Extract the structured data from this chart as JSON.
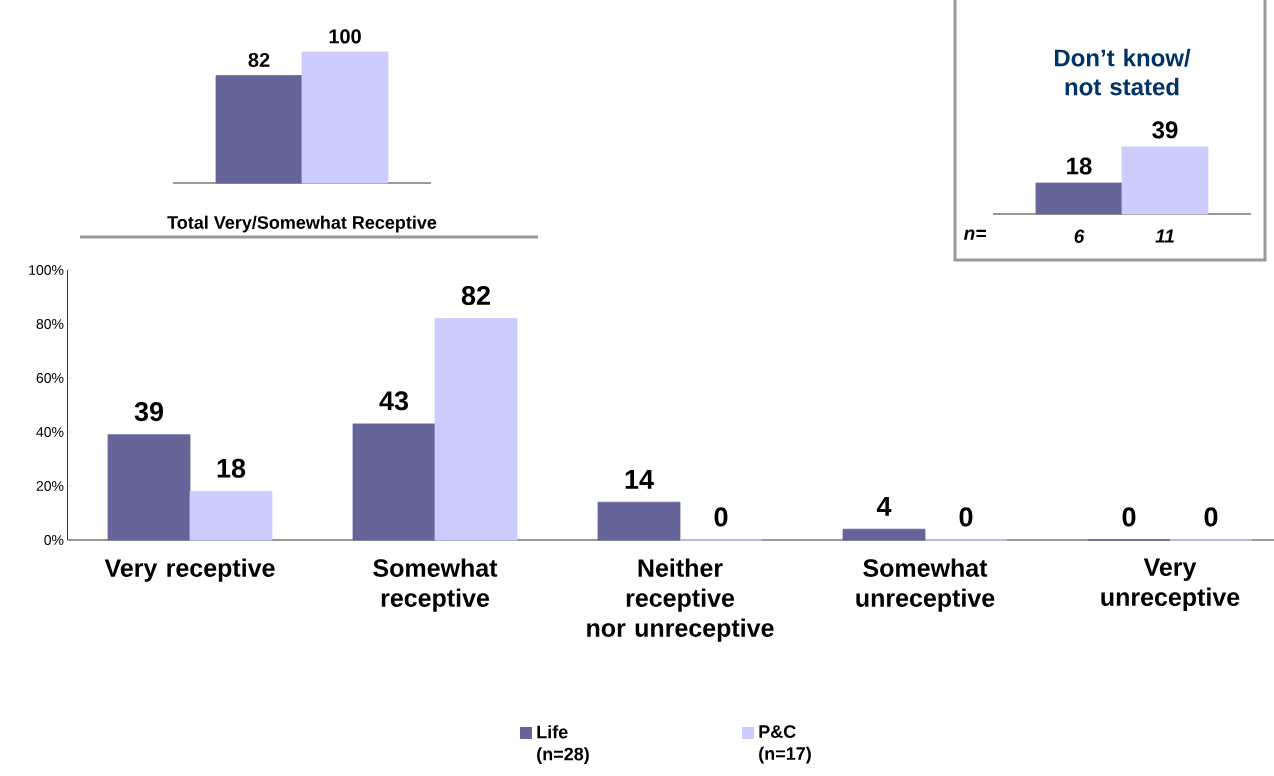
{
  "chart_data": [
    {
      "type": "bar",
      "xlabel": "Total Very/Somewhat Receptive",
      "categories": [
        null
      ],
      "series": [
        {
          "color": "#65659a",
          "values": [
            82
          ]
        },
        {
          "color": "#ccccff",
          "values": [
            100
          ]
        }
      ],
      "data_labels": true
    },
    {
      "type": "bar",
      "title": "Don’t know/ not stated",
      "categories": [
        null
      ],
      "series": [
        {
          "color": "#65659a",
          "values": [
            18
          ]
        },
        {
          "color": "#ccccff",
          "values": [
            39
          ]
        }
      ],
      "data_labels": true,
      "annotations": [
        "n=",
        "6",
        "11"
      ]
    },
    {
      "type": "bar",
      "categories": [
        "Very receptive",
        "Somewhat receptive",
        "Neither receptive nor unreceptive",
        "Somewhat unreceptive",
        "Very unreceptive"
      ],
      "series": [
        {
          "name": "Life (n=28)",
          "color": "#65659a",
          "values": [
            39,
            43,
            14,
            4,
            0
          ]
        },
        {
          "name": "P&C (n=17)",
          "color": "#ccccff",
          "values": [
            18,
            82,
            0,
            0,
            0
          ]
        }
      ],
      "ylim": [
        0,
        100
      ],
      "yticks": [
        {
          "value": 0,
          "label": "0%"
        },
        {
          "value": 20,
          "label": "20%"
        },
        {
          "value": 40,
          "label": "40%"
        },
        {
          "value": 60,
          "label": "60%"
        },
        {
          "value": 80,
          "label": "80%"
        },
        {
          "value": 100,
          "label": "100%"
        }
      ],
      "data_labels": true,
      "legend": "bottom"
    }
  ]
}
